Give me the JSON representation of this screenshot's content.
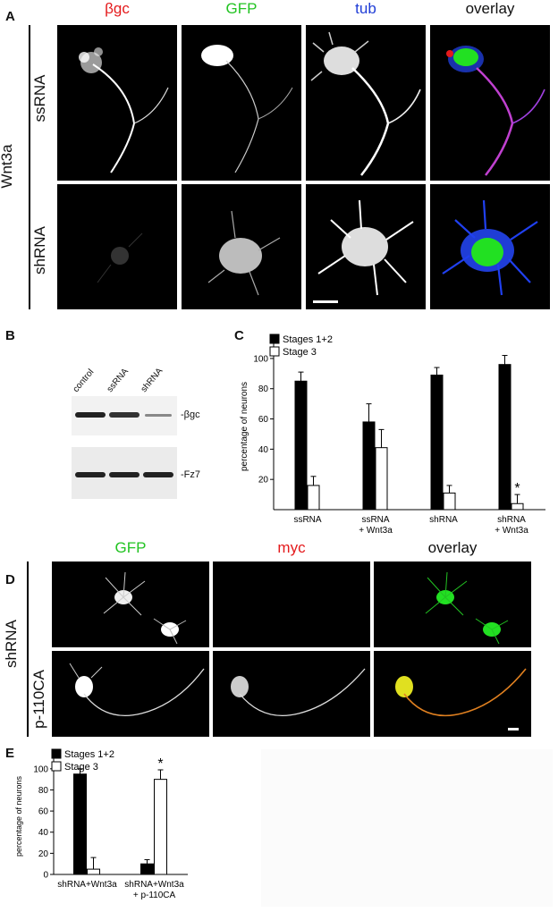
{
  "panelA": {
    "letter": "A",
    "columns": [
      {
        "label": "βgc",
        "color": "#e41a1c"
      },
      {
        "label": "GFP",
        "color": "#22c322"
      },
      {
        "label": "tub",
        "color": "#1f3dd6"
      },
      {
        "label": "overlay",
        "color": "#111111"
      }
    ],
    "treatment": "Wnt3a",
    "rows": [
      "ssRNA",
      "shRNA"
    ]
  },
  "panelB": {
    "letter": "B",
    "lanes": [
      "control",
      "ssRNA",
      "shRNA"
    ],
    "bands": [
      "-βgc",
      "-Fz7"
    ]
  },
  "panelC": {
    "letter": "C",
    "chart_data": {
      "type": "bar",
      "categories": [
        "ssRNA",
        "ssRNA + Wnt3a",
        "shRNA",
        "shRNA + Wnt3a"
      ],
      "series": [
        {
          "name": "Stages 1+2",
          "values": [
            85,
            58,
            89,
            96
          ],
          "errors": [
            6,
            12,
            5,
            6
          ],
          "color": "#000000"
        },
        {
          "name": "Stage 3",
          "values": [
            16,
            41,
            11,
            4
          ],
          "errors": [
            6,
            12,
            5,
            6
          ],
          "color": "#ffffff"
        }
      ],
      "ylabel": "percentage of neurons",
      "yticks": [
        20,
        40,
        60,
        80,
        100
      ],
      "ylim": [
        0,
        110
      ],
      "annotations": [
        {
          "category": "shRNA + Wnt3a",
          "series": "Stage 3",
          "text": "*"
        }
      ],
      "legend": "top-left"
    }
  },
  "panelD": {
    "letter": "D",
    "columns": [
      {
        "label": "GFP",
        "color": "#22c322"
      },
      {
        "label": "myc",
        "color": "#e41a1c"
      },
      {
        "label": "overlay",
        "color": "#111111"
      }
    ],
    "rows": [
      "shRNA",
      "p-110CA"
    ]
  },
  "panelE": {
    "letter": "E",
    "chart_data": {
      "type": "bar",
      "categories": [
        "shRNA+Wnt3a",
        "shRNA+Wnt3a + p-110CA"
      ],
      "series": [
        {
          "name": "Stages 1+2",
          "values": [
            95,
            10
          ],
          "errors": [
            5,
            4
          ],
          "color": "#000000"
        },
        {
          "name": "Stage 3",
          "values": [
            5,
            90
          ],
          "errors": [
            11,
            9
          ],
          "color": "#ffffff"
        }
      ],
      "ylabel": "percentage of neurons",
      "yticks": [
        0,
        20,
        40,
        60,
        80,
        100
      ],
      "ylim": [
        0,
        110
      ],
      "annotations": [
        {
          "category": "shRNA+Wnt3a + p-110CA",
          "series": "Stage 3",
          "text": "*"
        }
      ],
      "legend": "top-left"
    }
  }
}
